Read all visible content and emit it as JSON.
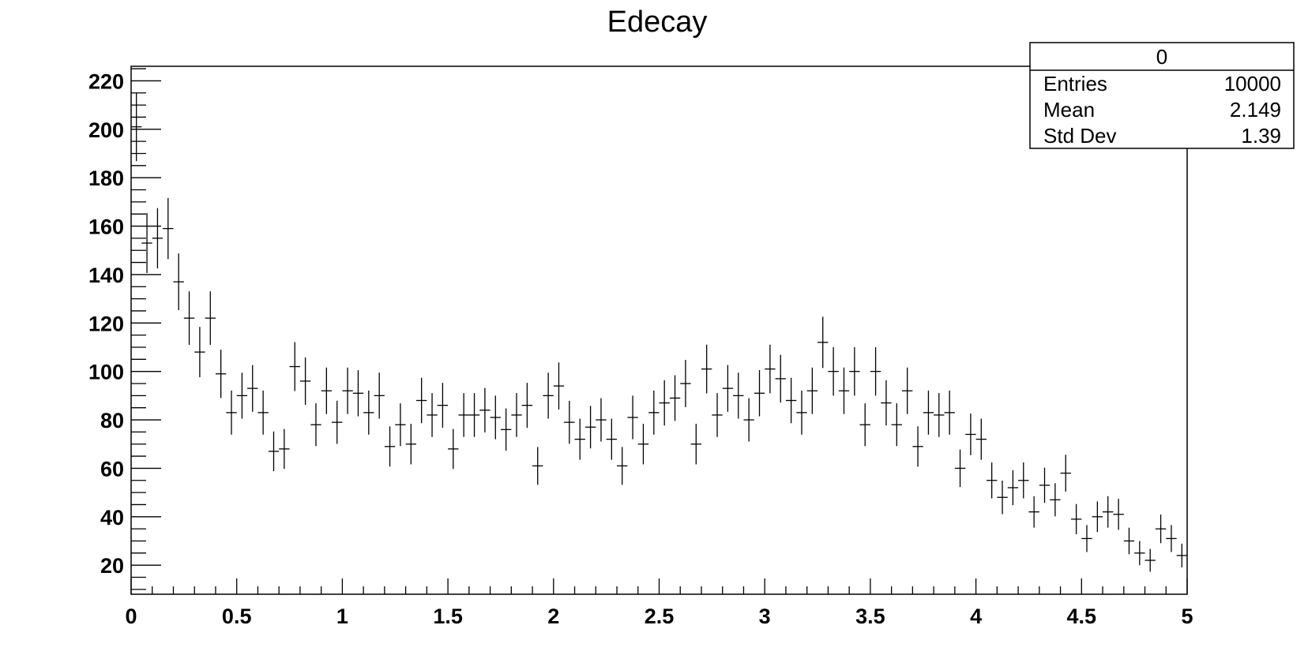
{
  "chart_data": {
    "type": "scatter",
    "title": "Edecay",
    "xlabel": "",
    "ylabel": "",
    "xlim": [
      0,
      5
    ],
    "ylim": [
      8,
      226
    ],
    "x_ticks": [
      "0",
      "0.5",
      "1",
      "1.5",
      "2",
      "2.5",
      "3",
      "3.5",
      "4",
      "4.5",
      "5"
    ],
    "y_ticks": [
      "20",
      "40",
      "60",
      "80",
      "100",
      "120",
      "140",
      "160",
      "180",
      "200",
      "220"
    ],
    "grid": false,
    "bin_width": 0.05,
    "x": [
      0.025,
      0.075,
      0.125,
      0.175,
      0.225,
      0.275,
      0.325,
      0.375,
      0.425,
      0.475,
      0.525,
      0.575,
      0.625,
      0.675,
      0.725,
      0.775,
      0.825,
      0.875,
      0.925,
      0.975,
      1.025,
      1.075,
      1.125,
      1.175,
      1.225,
      1.275,
      1.325,
      1.375,
      1.425,
      1.475,
      1.525,
      1.575,
      1.625,
      1.675,
      1.725,
      1.775,
      1.825,
      1.875,
      1.925,
      1.975,
      2.025,
      2.075,
      2.125,
      2.175,
      2.225,
      2.275,
      2.325,
      2.375,
      2.425,
      2.475,
      2.525,
      2.575,
      2.625,
      2.675,
      2.725,
      2.775,
      2.825,
      2.875,
      2.925,
      2.975,
      3.025,
      3.075,
      3.125,
      3.175,
      3.225,
      3.275,
      3.325,
      3.375,
      3.425,
      3.475,
      3.525,
      3.575,
      3.625,
      3.675,
      3.725,
      3.775,
      3.825,
      3.875,
      3.925,
      3.975,
      4.025,
      4.075,
      4.125,
      4.175,
      4.225,
      4.275,
      4.325,
      4.375,
      4.425,
      4.475,
      4.525,
      4.575,
      4.625,
      4.675,
      4.725,
      4.775,
      4.825,
      4.875,
      4.925,
      4.975
    ],
    "values": [
      201,
      153,
      155,
      159,
      137,
      122,
      108,
      122,
      99,
      83,
      90,
      93,
      83,
      67,
      68,
      102,
      96,
      78,
      92,
      79,
      92,
      91,
      83,
      90,
      69,
      78,
      70,
      88,
      82,
      86,
      68,
      82,
      82,
      84,
      81,
      76,
      82,
      86,
      61,
      90,
      94,
      79,
      72,
      77,
      80,
      72,
      61,
      81,
      70,
      83,
      87,
      89,
      95,
      70,
      101,
      82,
      93,
      90,
      80,
      91,
      101,
      97,
      88,
      83,
      92,
      112,
      100,
      92,
      100,
      78,
      100,
      87,
      78,
      92,
      69,
      83,
      82,
      83,
      60,
      74,
      72,
      55,
      48,
      52,
      55,
      42,
      53,
      47,
      58,
      39,
      31,
      40,
      42,
      41,
      30,
      25,
      22,
      35,
      31,
      24
    ],
    "errors": "sqrt(values)",
    "legend": "none",
    "stats_box": {
      "title": "0",
      "rows": [
        {
          "label": "Entries",
          "value": "10000"
        },
        {
          "label": "Mean",
          "value": "2.149"
        },
        {
          "label": "Std Dev",
          "value": "1.39"
        }
      ],
      "placement": "top-right"
    }
  }
}
